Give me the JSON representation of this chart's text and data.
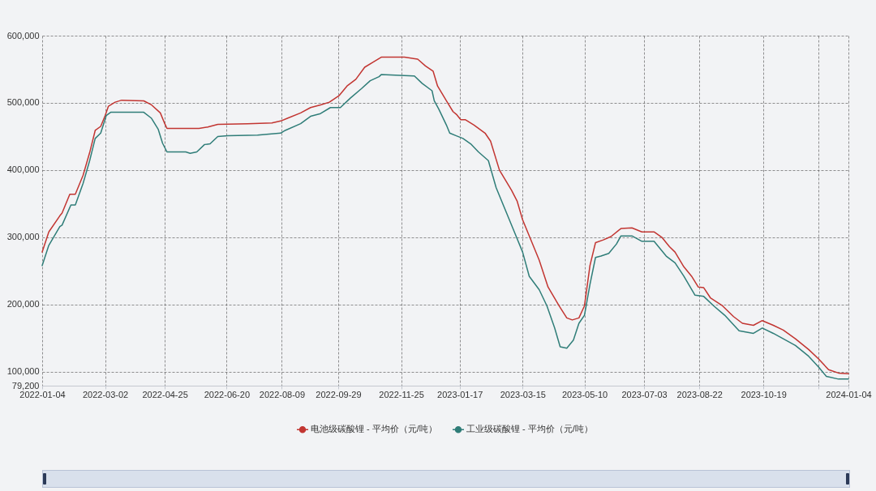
{
  "chart_data": {
    "type": "line",
    "grid": true,
    "legend": "bottom",
    "xlim": [
      "2022-01-04",
      "2024-01-04"
    ],
    "xticks": [
      "2022-01-04",
      "2022-03-02",
      "2022-04-25",
      "2022-06-20",
      "2022-08-09",
      "2022-09-29",
      "2022-11-25",
      "2023-01-17",
      "2023-03-15",
      "2023-05-10",
      "2023-07-03",
      "2023-08-22",
      "2023-10-19",
      {
        "value": "2023-12-08",
        "label": null
      },
      "2024-01-04"
    ],
    "ylim": [
      79200,
      600000
    ],
    "yticks": [
      {
        "value": 79200,
        "label": "79,200"
      },
      {
        "value": 100000,
        "label": "100,000"
      },
      {
        "value": 200000,
        "label": "200,000"
      },
      {
        "value": 300000,
        "label": "300,000"
      },
      {
        "value": 400000,
        "label": "400,000"
      },
      {
        "value": 500000,
        "label": "500,000"
      },
      {
        "value": 600000,
        "label": "600,000"
      }
    ],
    "series": [
      {
        "name": "电池级碳酸锂 - 平均价（元/吨）",
        "color": "#c23531",
        "x": [
          "2022-01-04",
          "2022-01-10",
          "2022-01-20",
          "2022-01-22",
          "2022-01-29",
          "2022-02-03",
          "2022-02-10",
          "2022-02-16",
          "2022-02-21",
          "2022-02-26",
          "2022-03-02",
          "2022-03-05",
          "2022-03-11",
          "2022-03-17",
          "2022-04-06",
          "2022-04-13",
          "2022-04-21",
          "2022-04-25",
          "2022-04-27",
          "2022-05-26",
          "2022-06-03",
          "2022-06-12",
          "2022-07-09",
          "2022-07-31",
          "2022-08-08",
          "2022-08-14",
          "2022-08-26",
          "2022-09-04",
          "2022-09-13",
          "2022-09-21",
          "2022-09-30",
          "2022-10-07",
          "2022-10-15",
          "2022-10-23",
          "2022-10-31",
          "2022-11-07",
          "2022-11-28",
          "2022-12-10",
          "2022-12-17",
          "2022-12-24",
          "2022-12-28",
          "2023-01-05",
          "2023-01-11",
          "2023-01-14",
          "2023-01-18",
          "2023-01-22",
          "2023-01-30",
          "2023-02-09",
          "2023-02-14",
          "2023-02-22",
          "2023-03-05",
          "2023-03-10",
          "2023-03-15",
          "2023-03-23",
          "2023-03-30",
          "2023-04-07",
          "2023-04-17",
          "2023-04-24",
          "2023-04-29",
          "2023-05-05",
          "2023-05-10",
          "2023-05-15",
          "2023-05-20",
          "2023-05-27",
          "2023-06-03",
          "2023-06-12",
          "2023-06-22",
          "2023-07-01",
          "2023-07-12",
          "2023-07-19",
          "2023-07-26",
          "2023-07-31",
          "2023-08-08",
          "2023-08-15",
          "2023-08-21",
          "2023-08-26",
          "2023-09-01",
          "2023-09-12",
          "2023-09-22",
          "2023-09-30",
          "2023-10-10",
          "2023-10-18",
          "2023-10-28",
          "2023-11-06",
          "2023-11-17",
          "2023-11-29",
          "2023-12-08",
          "2023-12-17",
          "2023-12-26",
          "2024-01-04"
        ],
        "values": [
          278000,
          308000,
          332000,
          336000,
          364000,
          364000,
          392000,
          426000,
          459000,
          465000,
          481000,
          495000,
          501000,
          504000,
          503000,
          497000,
          485000,
          469000,
          462000,
          462000,
          464000,
          468000,
          469000,
          470000,
          473000,
          477000,
          485000,
          493000,
          497000,
          501000,
          511000,
          525000,
          535000,
          553000,
          561000,
          568000,
          568000,
          565000,
          555000,
          547000,
          525000,
          503000,
          487000,
          483000,
          475000,
          475000,
          467000,
          455000,
          443000,
          400000,
          370000,
          354000,
          326000,
          294000,
          266000,
          226000,
          198000,
          180000,
          177000,
          180000,
          198000,
          258000,
          292000,
          296000,
          301000,
          313000,
          314000,
          308000,
          308000,
          300000,
          286000,
          278000,
          256000,
          242000,
          226000,
          225000,
          210000,
          198000,
          182000,
          172000,
          169000,
          176000,
          169000,
          162000,
          149000,
          133000,
          119000,
          103000,
          98000,
          97000
        ]
      },
      {
        "name": "工业级碳酸锂 - 平均价（元/吨）",
        "color": "#2f7d78",
        "x": [
          "2022-01-04",
          "2022-01-10",
          "2022-01-20",
          "2022-01-22",
          "2022-01-30",
          "2022-02-03",
          "2022-02-10",
          "2022-02-16",
          "2022-02-21",
          "2022-02-26",
          "2022-03-03",
          "2022-03-07",
          "2022-04-06",
          "2022-04-13",
          "2022-04-19",
          "2022-04-23",
          "2022-04-27",
          "2022-05-14",
          "2022-05-18",
          "2022-05-24",
          "2022-05-31",
          "2022-06-05",
          "2022-06-12",
          "2022-06-21",
          "2022-07-18",
          "2022-08-08",
          "2022-08-12",
          "2022-08-26",
          "2022-09-04",
          "2022-09-13",
          "2022-09-22",
          "2022-10-01",
          "2022-10-10",
          "2022-10-20",
          "2022-10-28",
          "2022-11-05",
          "2022-11-07",
          "2022-12-07",
          "2022-12-14",
          "2022-12-23",
          "2022-12-25",
          "2022-12-29",
          "2023-01-05",
          "2023-01-08",
          "2023-01-14",
          "2023-01-20",
          "2023-01-27",
          "2023-02-03",
          "2023-02-12",
          "2023-02-19",
          "2023-02-27",
          "2023-03-07",
          "2023-03-15",
          "2023-03-21",
          "2023-03-30",
          "2023-04-06",
          "2023-04-13",
          "2023-04-18",
          "2023-04-24",
          "2023-04-30",
          "2023-05-05",
          "2023-05-10",
          "2023-05-15",
          "2023-05-20",
          "2023-05-25",
          "2023-06-01",
          "2023-06-08",
          "2023-06-12",
          "2023-06-22",
          "2023-07-01",
          "2023-07-12",
          "2023-07-23",
          "2023-07-31",
          "2023-08-08",
          "2023-08-18",
          "2023-08-26",
          "2023-09-04",
          "2023-09-14",
          "2023-09-27",
          "2023-10-10",
          "2023-10-18",
          "2023-10-28",
          "2023-11-06",
          "2023-11-17",
          "2023-11-29",
          "2023-12-08",
          "2023-12-15",
          "2023-12-26",
          "2024-01-04"
        ],
        "values": [
          258000,
          288000,
          316000,
          318000,
          348000,
          348000,
          380000,
          414000,
          447000,
          455000,
          481000,
          486000,
          486000,
          477000,
          461000,
          440000,
          427000,
          427000,
          425000,
          427000,
          438000,
          439000,
          450000,
          451000,
          452000,
          455000,
          459000,
          469000,
          480000,
          484000,
          493000,
          493000,
          507000,
          521000,
          533000,
          539000,
          542000,
          540000,
          529000,
          518000,
          503000,
          491000,
          467000,
          455000,
          451000,
          447000,
          439000,
          427000,
          414000,
          374000,
          342000,
          310000,
          278000,
          242000,
          222000,
          198000,
          165000,
          137000,
          135000,
          147000,
          172000,
          184000,
          230000,
          270000,
          272000,
          276000,
          290000,
          302000,
          302000,
          294000,
          294000,
          272000,
          262000,
          242000,
          214000,
          212000,
          198000,
          184000,
          161000,
          157000,
          165000,
          157000,
          149000,
          139000,
          123000,
          107000,
          93000,
          89000,
          89000
        ]
      }
    ]
  }
}
